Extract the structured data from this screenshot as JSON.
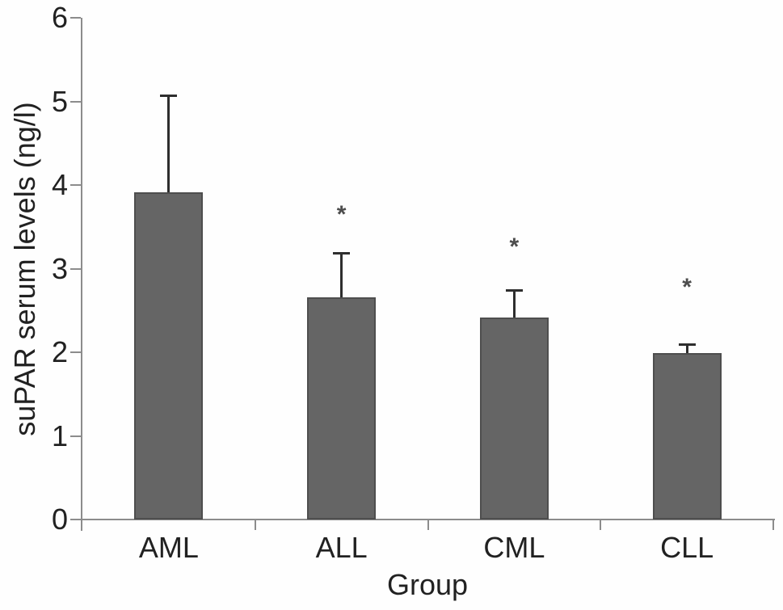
{
  "chart_data": {
    "type": "bar",
    "title": "",
    "xlabel": "Group",
    "ylabel": "suPAR serum levels (ng/l)",
    "categories": [
      "AML",
      "ALL",
      "CML",
      "CLL"
    ],
    "values": [
      3.91,
      2.66,
      2.42,
      1.99
    ],
    "error_top": [
      5.07,
      3.19,
      2.74,
      2.1
    ],
    "significance": [
      false,
      true,
      true,
      true
    ],
    "sig_marker": "*",
    "sig_marker_y": [
      null,
      3.7,
      3.31,
      2.83
    ],
    "ylim": [
      0,
      6
    ],
    "yticks": [
      0,
      1,
      2,
      3,
      4,
      5,
      6
    ],
    "grid": false,
    "legend": null,
    "colors": {
      "bar_fill": "#656565",
      "bar_edge": "#4e4e4e",
      "error_bar": "#2e2e2e",
      "axis": "#8c8c8c",
      "text": "#212121",
      "sig_marker": "#4d4d4d",
      "background": "#fefefe"
    }
  }
}
